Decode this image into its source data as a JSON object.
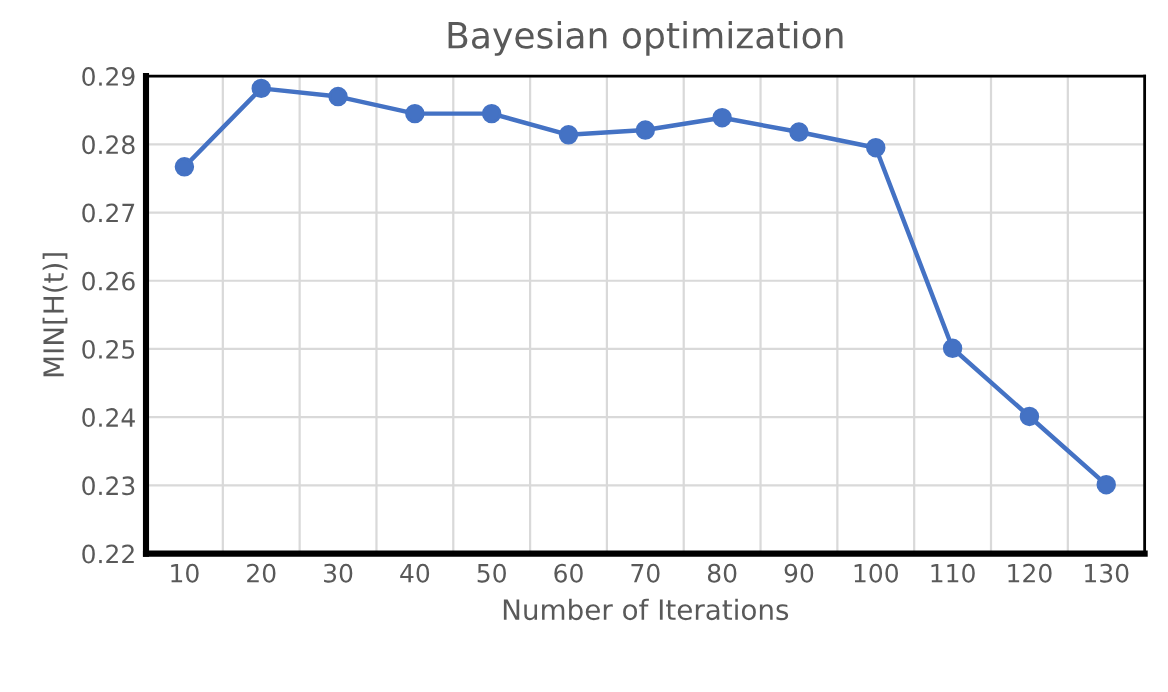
{
  "chart_data": {
    "type": "line",
    "title": "Bayesian optimization",
    "xlabel": "Number of Iterations",
    "ylabel": "MIN[H(t)]",
    "categories": [
      "10",
      "20",
      "30",
      "40",
      "50",
      "60",
      "70",
      "80",
      "90",
      "100",
      "110",
      "120",
      "130"
    ],
    "series": [
      {
        "color": "#4472c4",
        "values": [
          0.2767,
          0.2882,
          0.287,
          0.2845,
          0.2845,
          0.2814,
          0.2821,
          0.2839,
          0.2818,
          0.2795,
          0.2501,
          0.2401,
          0.2301
        ]
      }
    ],
    "ylim": [
      0.22,
      0.29
    ],
    "yticks": [
      0.22,
      0.23,
      0.24,
      0.25,
      0.26,
      0.27,
      0.28,
      0.29
    ],
    "grid": true,
    "marker": "circle",
    "line_style": "solid",
    "legend": false
  }
}
